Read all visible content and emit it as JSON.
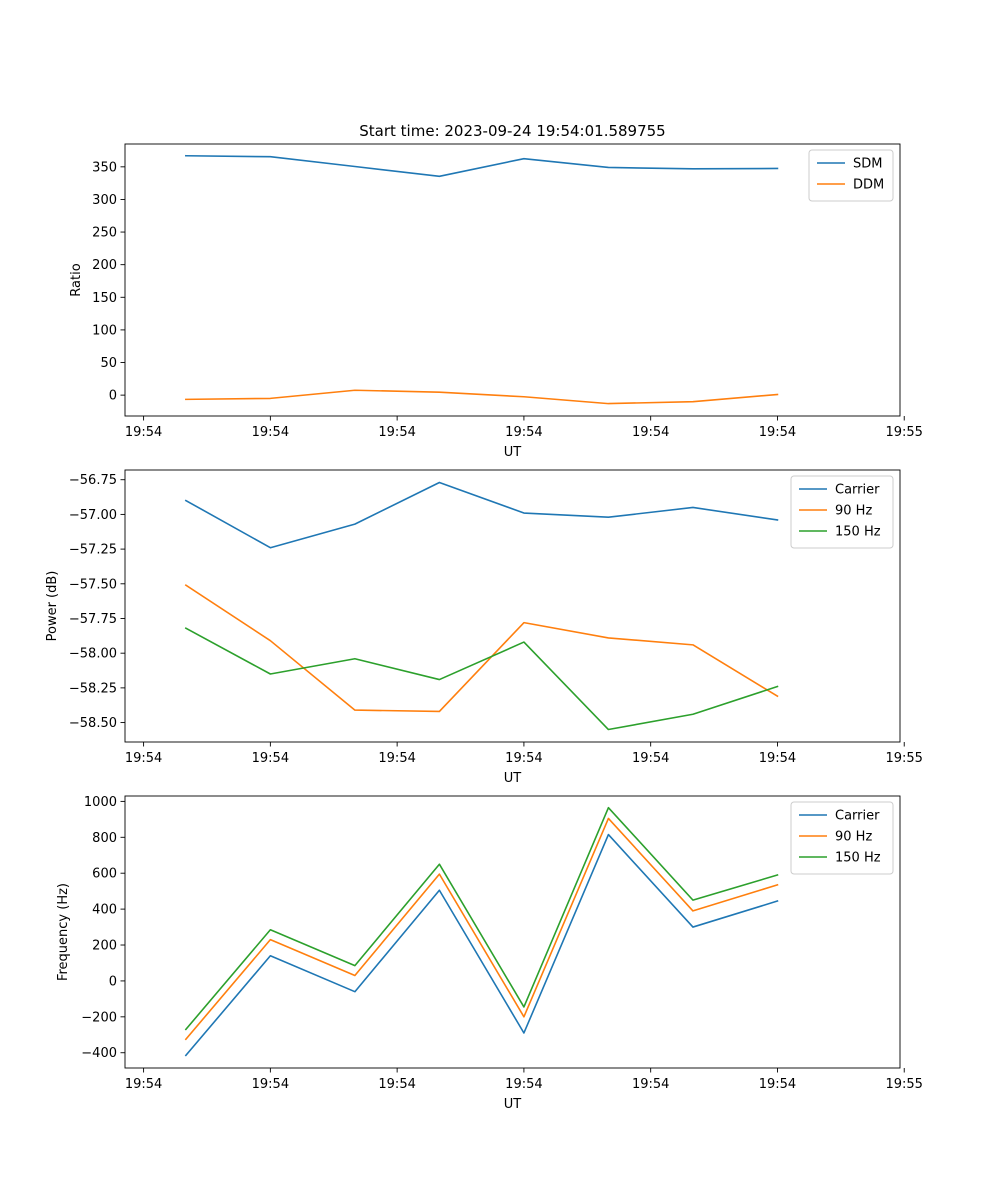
{
  "chart_data": [
    {
      "type": "line",
      "title": "Start time: 2023-09-24 19:54:01.589755",
      "xlabel": "UT",
      "ylabel": "Ratio",
      "x": [
        0,
        1,
        2,
        3,
        4,
        5,
        6,
        7
      ],
      "xlim": [
        -0.72,
        8.45
      ],
      "x_ticks": [
        -0.5,
        1.0,
        2.5,
        4.0,
        5.5,
        7.0,
        8.5
      ],
      "x_tick_labels": [
        "19:54",
        "19:54",
        "19:54",
        "19:54",
        "19:54",
        "19:54",
        "19:55"
      ],
      "ylim": [
        -32,
        385
      ],
      "y_ticks": [
        0,
        50,
        100,
        150,
        200,
        250,
        300,
        350
      ],
      "y_tick_labels": [
        "0",
        "50",
        "100",
        "150",
        "200",
        "250",
        "300",
        "350"
      ],
      "legend_position": "top-right",
      "series": [
        {
          "name": "SDM",
          "color": "#1f77b4",
          "values": [
            367,
            365.5,
            350.5,
            335.5,
            362.5,
            349,
            347,
            347.5
          ]
        },
        {
          "name": "DDM",
          "color": "#ff7f0e",
          "values": [
            -6.5,
            -5,
            7.5,
            4.5,
            -2.5,
            -13,
            -10,
            1
          ]
        }
      ]
    },
    {
      "type": "line",
      "title": "",
      "xlabel": "UT",
      "ylabel": "Power (dB)",
      "x": [
        0,
        1,
        2,
        3,
        4,
        5,
        6,
        7
      ],
      "xlim": [
        -0.72,
        8.45
      ],
      "x_ticks": [
        -0.5,
        1.0,
        2.5,
        4.0,
        5.5,
        7.0,
        8.5
      ],
      "x_tick_labels": [
        "19:54",
        "19:54",
        "19:54",
        "19:54",
        "19:54",
        "19:54",
        "19:55"
      ],
      "ylim": [
        -58.64,
        -56.68
      ],
      "y_ticks": [
        -58.5,
        -58.25,
        -58.0,
        -57.75,
        -57.5,
        -57.25,
        -57.0,
        -56.75
      ],
      "y_tick_labels": [
        "−58.50",
        "−58.25",
        "−58.00",
        "−57.75",
        "−57.50",
        "−57.25",
        "−57.00",
        "−56.75"
      ],
      "legend_position": "top-right",
      "series": [
        {
          "name": "Carrier",
          "color": "#1f77b4",
          "values": [
            -56.9,
            -57.24,
            -57.07,
            -56.77,
            -56.99,
            -57.02,
            -56.95,
            -57.04
          ]
        },
        {
          "name": "90 Hz",
          "color": "#ff7f0e",
          "values": [
            -57.51,
            -57.91,
            -58.41,
            -58.42,
            -57.78,
            -57.89,
            -57.94,
            -58.31
          ]
        },
        {
          "name": "150 Hz",
          "color": "#2ca02c",
          "values": [
            -57.82,
            -58.15,
            -58.04,
            -58.19,
            -57.92,
            -58.55,
            -58.44,
            -58.24
          ]
        }
      ]
    },
    {
      "type": "line",
      "title": "",
      "xlabel": "UT",
      "ylabel": "Frequency (Hz)",
      "x": [
        0,
        1,
        2,
        3,
        4,
        5,
        6,
        7
      ],
      "xlim": [
        -0.72,
        8.45
      ],
      "x_ticks": [
        -0.5,
        1.0,
        2.5,
        4.0,
        5.5,
        7.0,
        8.5
      ],
      "x_tick_labels": [
        "19:54",
        "19:54",
        "19:54",
        "19:54",
        "19:54",
        "19:54",
        "19:55"
      ],
      "ylim": [
        -485,
        1030
      ],
      "y_ticks": [
        -400,
        -200,
        0,
        200,
        400,
        600,
        800,
        1000
      ],
      "y_tick_labels": [
        "−400",
        "−200",
        "0",
        "200",
        "400",
        "600",
        "800",
        "1000"
      ],
      "legend_position": "top-right",
      "series": [
        {
          "name": "Carrier",
          "color": "#1f77b4",
          "values": [
            -415,
            140,
            -60,
            505,
            -290,
            815,
            300,
            445
          ]
        },
        {
          "name": "90 Hz",
          "color": "#ff7f0e",
          "values": [
            -325,
            230,
            30,
            595,
            -200,
            905,
            390,
            535
          ]
        },
        {
          "name": "150 Hz",
          "color": "#2ca02c",
          "values": [
            -270,
            285,
            85,
            650,
            -145,
            965,
            450,
            590
          ]
        }
      ]
    }
  ]
}
